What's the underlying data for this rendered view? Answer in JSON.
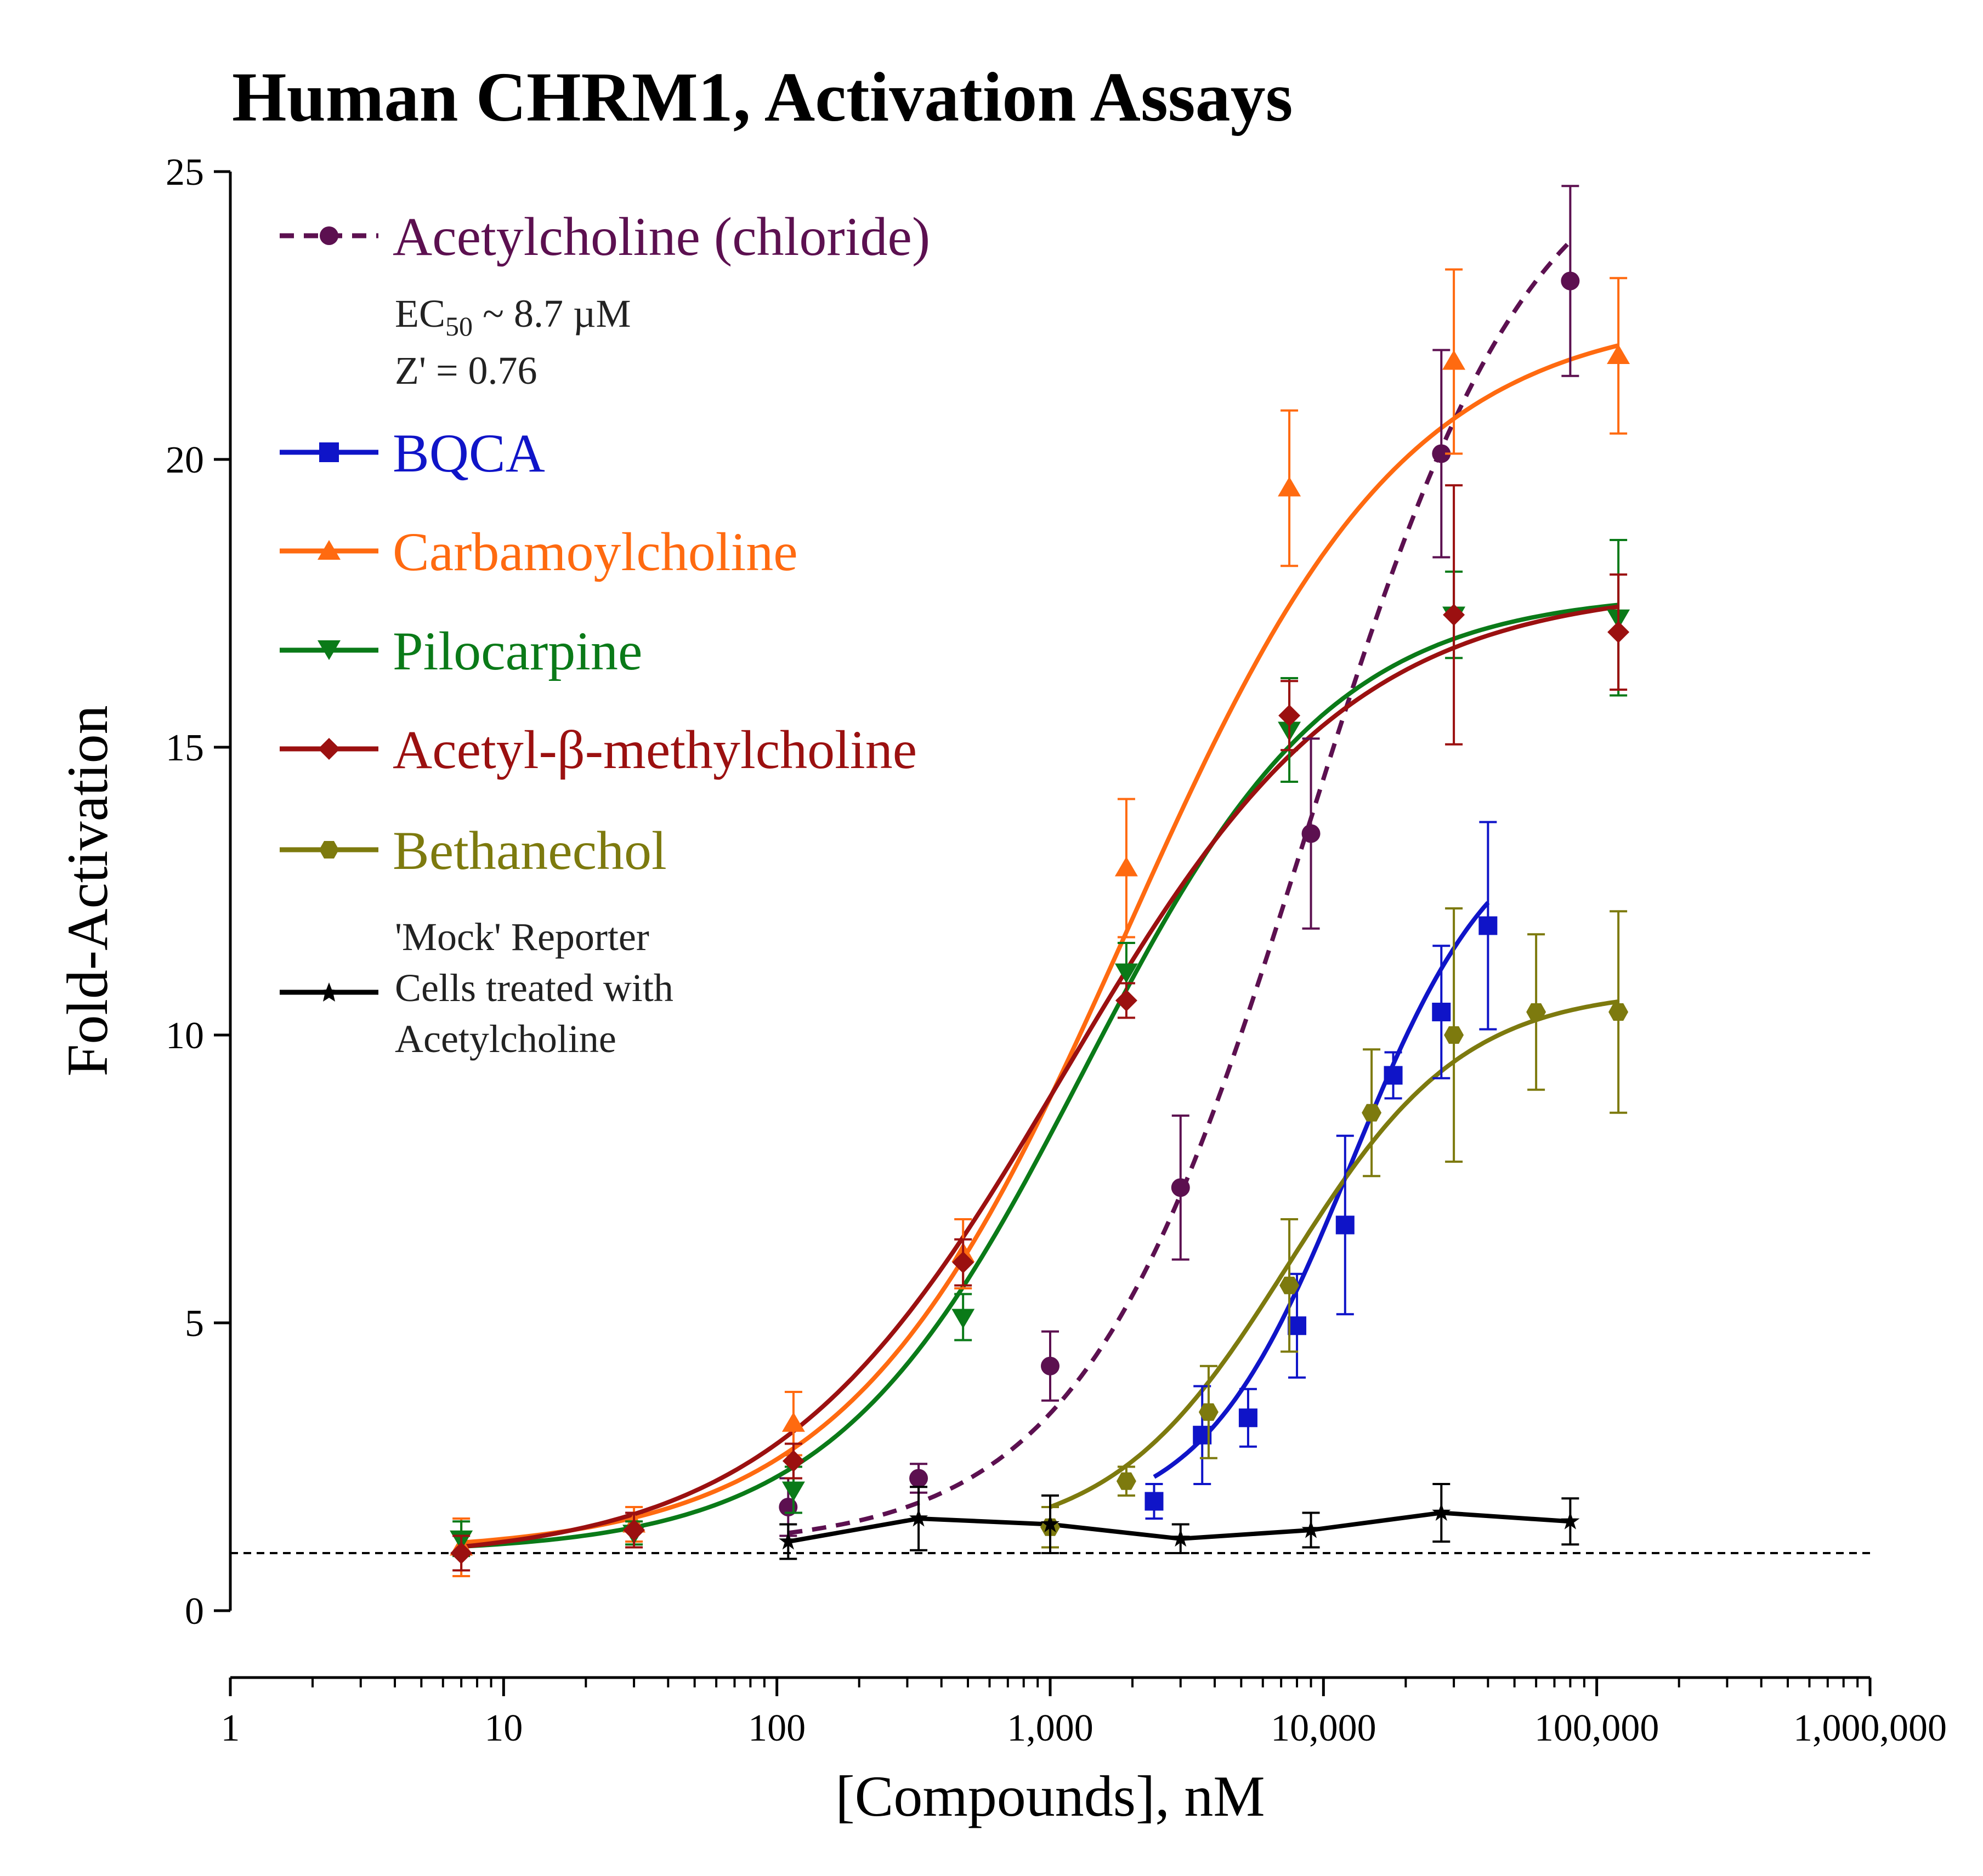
{
  "chart_data": {
    "type": "line",
    "title": "Human CHRM1, Activation Assays",
    "xlabel": "[Compounds], nM",
    "ylabel": "Fold-Activation",
    "xscale": "log",
    "xlim": [
      1,
      1000000
    ],
    "ylim": [
      0,
      25
    ],
    "x_ticks": [
      1,
      10,
      100,
      1000,
      10000,
      100000,
      1000000
    ],
    "x_tick_labels": [
      "1",
      "10",
      "100",
      "1,000",
      "10,000",
      "100,000",
      "1,000,000"
    ],
    "y_ticks": [
      0,
      5,
      10,
      15,
      20,
      25
    ],
    "y_tick_labels": [
      "0",
      "5",
      "10",
      "15",
      "20",
      "25"
    ],
    "baseline": 1,
    "legend_position": "top-left",
    "annotations": {
      "ec50_prefix": "EC",
      "ec50_sub": "50",
      "ec50_value": " ~ 8.7 µM",
      "zprime": "Z' = 0.76",
      "mock_line1": "'Mock' Reporter",
      "mock_line2": "Cells treated with",
      "mock_line3": "Acetylcholine"
    },
    "series": [
      {
        "name": "Acetylcholine (chloride)",
        "color": "#5C1050",
        "marker": "circle",
        "dashed": true,
        "fit": {
          "bottom": 1.1,
          "top": 26.0,
          "logEC50": 3.94,
          "hill": 1.05,
          "xmin": 110,
          "xmax": 80000
        },
        "x": [
          110,
          330,
          1000,
          3000,
          9000,
          27000,
          80000
        ],
        "y": [
          1.8,
          2.3,
          4.25,
          7.35,
          13.5,
          20.1,
          23.1
        ],
        "err": [
          0.5,
          0.25,
          0.6,
          1.25,
          1.65,
          1.8,
          1.65
        ]
      },
      {
        "name": "BQCA",
        "color": "#0F14C8",
        "marker": "square",
        "dashed": false,
        "fit": {
          "bottom": 1.5,
          "top": 14.0,
          "logEC50": 4.1,
          "hill": 1.6,
          "xmin": 2400,
          "xmax": 40000
        },
        "x": [
          2400,
          3600,
          5300,
          8000,
          12000,
          18000,
          27000,
          40000
        ],
        "y": [
          1.9,
          3.05,
          3.35,
          4.95,
          6.7,
          9.3,
          10.4,
          11.9
        ],
        "err": [
          0.3,
          0.85,
          0.5,
          0.9,
          1.55,
          0.4,
          1.15,
          1.8
        ]
      },
      {
        "name": "Carbamoylcholine",
        "color": "#FF6A10",
        "marker": "triangle-up",
        "dashed": false,
        "fit": {
          "bottom": 1.0,
          "top": 22.6,
          "logEC50": 3.28,
          "hill": 0.85,
          "xmin": 7,
          "xmax": 120000
        },
        "x": [
          7,
          30,
          115,
          480,
          1900,
          7500,
          30000,
          120000
        ],
        "y": [
          1.1,
          1.5,
          3.25,
          6.2,
          12.9,
          19.5,
          21.7,
          21.8
        ],
        "err": [
          0.5,
          0.3,
          0.55,
          0.6,
          1.2,
          1.35,
          1.6,
          1.35
        ]
      },
      {
        "name": "Pilocarpine",
        "color": "#0A7A18",
        "marker": "triangle-down",
        "dashed": false,
        "fit": {
          "bottom": 1.0,
          "top": 17.7,
          "logEC50": 3.12,
          "hill": 0.95,
          "xmin": 7,
          "xmax": 120000
        },
        "x": [
          7,
          30,
          115,
          480,
          1900,
          7500,
          30000,
          120000
        ],
        "y": [
          1.25,
          1.35,
          2.1,
          5.1,
          11.1,
          15.3,
          17.3,
          17.25
        ],
        "err": [
          0.3,
          0.2,
          0.4,
          0.4,
          0.5,
          0.9,
          0.75,
          1.35
        ]
      },
      {
        "name": "Acetyl-β-methylcholine",
        "color": "#9B1010",
        "marker": "diamond",
        "dashed": false,
        "fit": {
          "bottom": 0.85,
          "top": 17.8,
          "logEC50": 3.05,
          "hill": 0.82,
          "xmin": 7,
          "xmax": 120000
        },
        "x": [
          7,
          30,
          115,
          480,
          1900,
          7500,
          30000,
          120000
        ],
        "y": [
          1.0,
          1.4,
          2.6,
          6.05,
          10.6,
          15.55,
          17.3,
          17.0
        ],
        "err": [
          0.3,
          0.3,
          0.3,
          0.4,
          0.3,
          0.6,
          2.25,
          1.0
        ]
      },
      {
        "name": "Bethanechol",
        "color": "#7D7A0E",
        "marker": "hexagon",
        "dashed": false,
        "fit": {
          "bottom": 1.2,
          "top": 10.8,
          "logEC50": 3.87,
          "hill": 1.35,
          "xmin": 1000,
          "xmax": 120000
        },
        "x": [
          1000,
          1900,
          3800,
          7500,
          15000,
          30000,
          60000,
          120000
        ],
        "y": [
          1.45,
          2.25,
          3.45,
          5.65,
          8.65,
          10.0,
          10.4,
          10.4
        ],
        "err": [
          0.35,
          0.25,
          0.8,
          1.15,
          1.1,
          2.2,
          1.35,
          1.75
        ]
      },
      {
        "name": "'Mock' Reporter Cells treated with Acetylcholine",
        "color": "#000000",
        "marker": "star",
        "dashed": false,
        "fit": null,
        "x": [
          110,
          330,
          1000,
          3000,
          9000,
          27000,
          80000
        ],
        "y": [
          1.2,
          1.6,
          1.5,
          1.25,
          1.4,
          1.7,
          1.55
        ],
        "err": [
          0.3,
          0.55,
          0.5,
          0.25,
          0.3,
          0.5,
          0.4
        ]
      }
    ]
  }
}
